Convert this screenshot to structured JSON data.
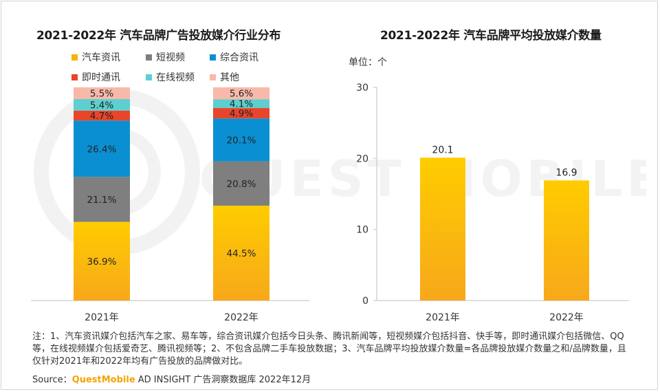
{
  "colors": {
    "auto_info": "#f5b400",
    "short_video": "#7f7f7f",
    "general_info": "#0a90d2",
    "instant_msg": "#e8452a",
    "online_video": "#5dcfd0",
    "other": "#f8b9ab",
    "avg_bar": "#f5b400"
  },
  "left_chart": {
    "title": "2021-2022年 汽车品牌广告投放媒介行业分布",
    "legend": [
      "汽车资讯",
      "短视频",
      "综合资讯",
      "即时通讯",
      "在线视频",
      "其他"
    ]
  },
  "right_chart": {
    "title": "2021-2022年 汽车品牌平均投放媒介数量",
    "unit": "单位：个"
  },
  "chart_data": [
    {
      "type": "bar",
      "stacked": true,
      "percent": true,
      "title": "2021-2022年 汽车品牌广告投放媒介行业分布",
      "categories": [
        "2021年",
        "2022年"
      ],
      "series": [
        {
          "name": "汽车资讯",
          "values": [
            36.9,
            44.5
          ],
          "labels": [
            "36.9%",
            "44.5%"
          ]
        },
        {
          "name": "短视频",
          "values": [
            21.1,
            20.8
          ],
          "labels": [
            "21.1%",
            "20.8%"
          ]
        },
        {
          "name": "综合资讯",
          "values": [
            26.4,
            20.1
          ],
          "labels": [
            "26.4%",
            "20.1%"
          ]
        },
        {
          "name": "即时通讯",
          "values": [
            4.7,
            4.9
          ],
          "labels": [
            "4.7%",
            "4.9%"
          ]
        },
        {
          "name": "在线视频",
          "values": [
            5.4,
            4.1
          ],
          "labels": [
            "5.4%",
            "4.1%"
          ]
        },
        {
          "name": "其他",
          "values": [
            5.5,
            5.6
          ],
          "labels": [
            "5.5%",
            "5.6%"
          ]
        }
      ],
      "legend_position": "top"
    },
    {
      "type": "bar",
      "title": "2021-2022年 汽车品牌平均投放媒介数量",
      "categories": [
        "2021年",
        "2022年"
      ],
      "values": [
        20.1,
        16.9
      ],
      "labels": [
        "20.1",
        "16.9"
      ],
      "ylim": [
        0,
        30
      ],
      "yticks": [
        "0",
        "10",
        "20",
        "30"
      ],
      "grid": false
    }
  ],
  "note": "注：1、汽车资讯媒介包括汽车之家、易车等，综合资讯媒介包括今日头条、腾讯新闻等，短视频媒介包括抖音、快手等，即时通讯媒介包括微信、QQ等，在线视频媒介包括爱奇艺、腾讯视频等；2、不包含品牌二手车投放数据；3、汽车品牌平均投放媒介数量=各品牌投放媒介数量之和/品牌数量，且仅针对2021年和2022年均有广告投放的品牌做对比。",
  "source": {
    "prefix": "Source：",
    "brand": "QuestMobile",
    "rest": " AD INSIGHT 广告洞察数据库 2022年12月"
  },
  "watermark": "QUEST MOBILE"
}
